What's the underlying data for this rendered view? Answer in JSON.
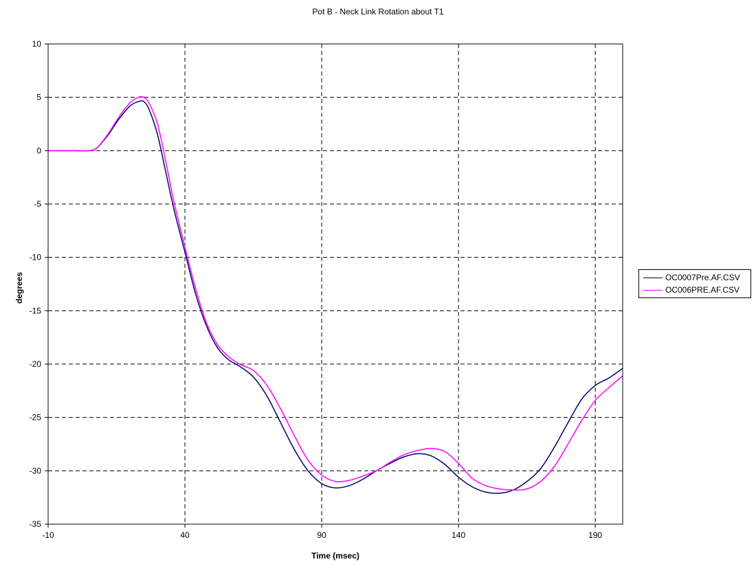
{
  "chart_data": {
    "type": "line",
    "title": "Pot B - Neck Link Rotation about T1",
    "xlabel": "Time (msec)",
    "ylabel": "degrees",
    "xlim": [
      -10,
      200
    ],
    "ylim": [
      -35,
      10
    ],
    "x_ticks": [
      -10,
      40,
      90,
      140,
      190
    ],
    "y_ticks": [
      10,
      5,
      0,
      -5,
      -10,
      -15,
      -20,
      -25,
      -30,
      -35
    ],
    "grid": "on",
    "legend_position": "right",
    "series": [
      {
        "name": "OC0007Pre.AF.CSV",
        "color": "#000066",
        "x": [
          -10,
          0,
          5,
          8,
          12,
          16,
          20,
          23,
          25,
          27,
          30,
          33,
          36,
          40,
          44,
          48,
          52,
          56,
          60,
          65,
          70,
          75,
          80,
          85,
          90,
          95,
          100,
          105,
          110,
          115,
          120,
          125,
          130,
          135,
          140,
          145,
          150,
          155,
          160,
          165,
          170,
          175,
          180,
          185,
          190,
          195,
          200
        ],
        "values": [
          0,
          0,
          0,
          0.3,
          1.5,
          3.0,
          4.2,
          4.6,
          4.6,
          3.8,
          1.5,
          -2.0,
          -5.5,
          -9.5,
          -13.5,
          -16.5,
          -18.5,
          -19.6,
          -20.2,
          -21.2,
          -23.0,
          -25.5,
          -28.0,
          -30.0,
          -31.2,
          -31.6,
          -31.4,
          -30.8,
          -30.0,
          -29.3,
          -28.7,
          -28.4,
          -28.6,
          -29.4,
          -30.6,
          -31.5,
          -32.0,
          -32.1,
          -31.8,
          -31.0,
          -29.8,
          -27.8,
          -25.5,
          -23.3,
          -22.0,
          -21.3,
          -20.4
        ]
      },
      {
        "name": "OC006PRE.AF.CSV",
        "color": "#ff00ff",
        "x": [
          -10,
          0,
          5,
          8,
          12,
          16,
          20,
          23,
          25,
          27,
          30,
          33,
          36,
          40,
          44,
          48,
          52,
          56,
          60,
          65,
          70,
          75,
          80,
          85,
          90,
          95,
          100,
          105,
          110,
          115,
          120,
          125,
          130,
          135,
          140,
          145,
          150,
          155,
          160,
          165,
          170,
          175,
          180,
          185,
          190,
          195,
          200
        ],
        "values": [
          0,
          0,
          0,
          0.3,
          1.6,
          3.2,
          4.5,
          5.0,
          5.0,
          4.4,
          2.5,
          -1.0,
          -4.8,
          -9.0,
          -13.0,
          -16.2,
          -18.2,
          -19.3,
          -20.0,
          -20.6,
          -22.0,
          -24.2,
          -26.7,
          -29.0,
          -30.4,
          -31.0,
          -30.9,
          -30.5,
          -30.0,
          -29.2,
          -28.5,
          -28.1,
          -27.9,
          -28.2,
          -29.3,
          -30.7,
          -31.4,
          -31.7,
          -31.8,
          -31.7,
          -31.0,
          -29.6,
          -27.5,
          -25.3,
          -23.4,
          -22.2,
          -21.1
        ]
      }
    ]
  }
}
